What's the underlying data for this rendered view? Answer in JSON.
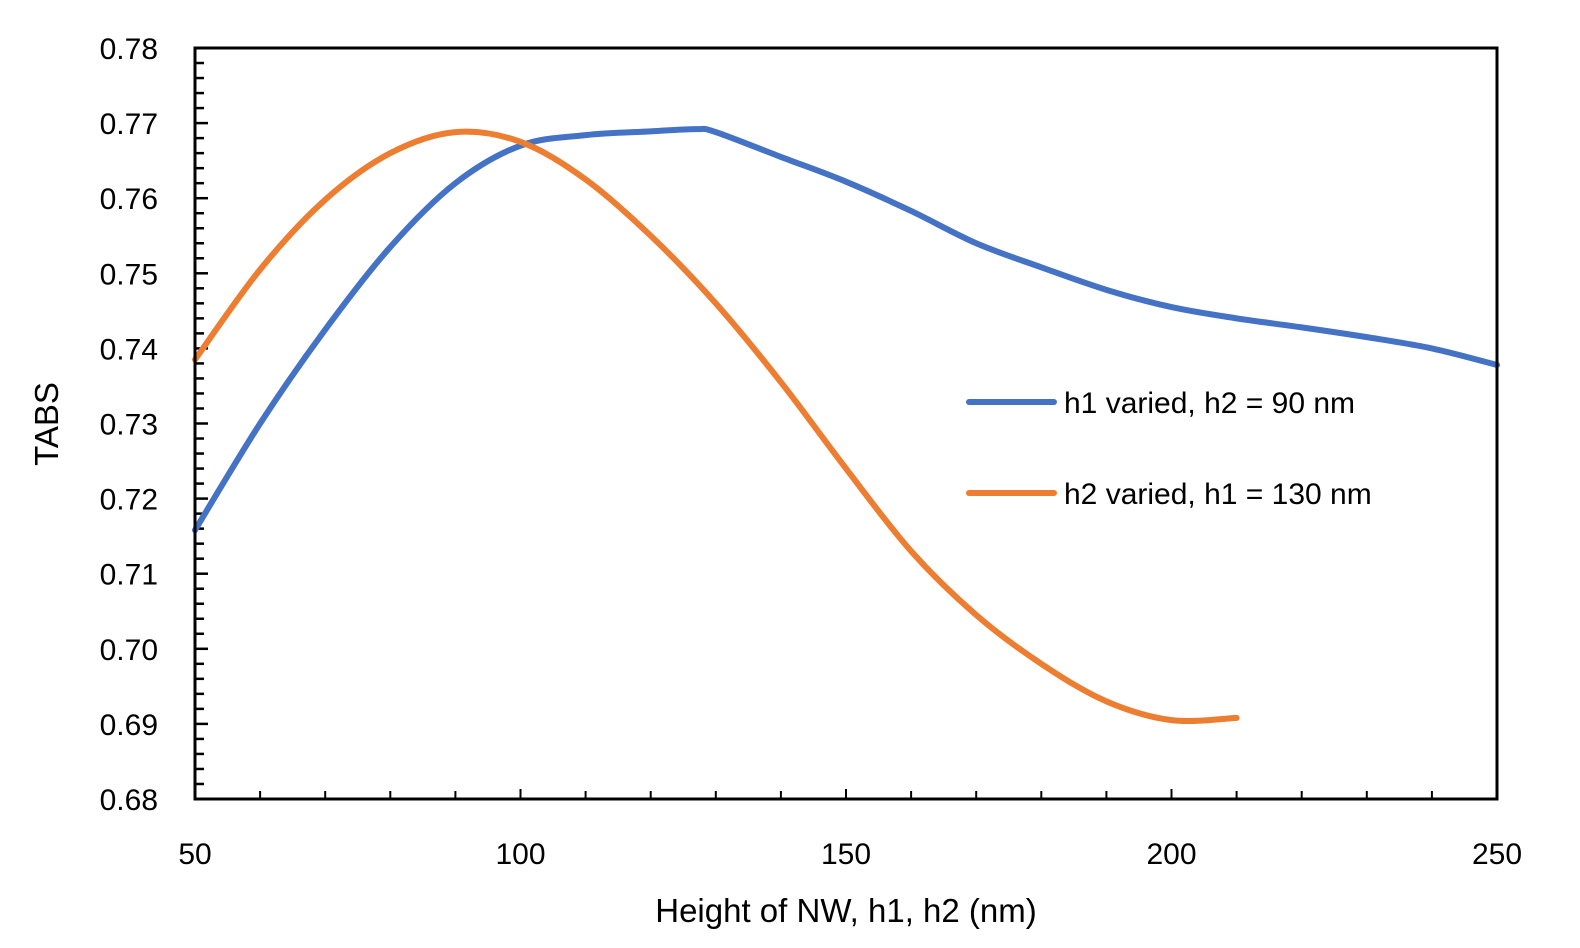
{
  "chart_data": {
    "type": "line",
    "title": "",
    "xlabel": "Height of NW, h1, h2 (nm)",
    "ylabel": "TABS",
    "xlim": [
      50,
      250
    ],
    "ylim": [
      0.68,
      0.78
    ],
    "x_ticks": [
      50,
      100,
      150,
      200,
      250
    ],
    "x_tick_labels": [
      "50",
      "100",
      "150",
      "200",
      "250"
    ],
    "x_minor_step": 10,
    "y_ticks": [
      0.68,
      0.69,
      0.7,
      0.71,
      0.72,
      0.73,
      0.74,
      0.75,
      0.76,
      0.77,
      0.78
    ],
    "y_tick_labels": [
      "0.68",
      "0.69",
      "0.70",
      "0.71",
      "0.72",
      "0.73",
      "0.74",
      "0.75",
      "0.76",
      "0.77",
      "0.78"
    ],
    "y_minor_step": 0.002,
    "grid": false,
    "legend_position": "right",
    "series": [
      {
        "name": "h1 varied, h2 = 90 nm",
        "color": "#4472C4",
        "x": [
          50,
          60,
          70,
          80,
          90,
          100,
          110,
          120,
          127,
          130,
          140,
          150,
          160,
          170,
          180,
          190,
          200,
          210,
          220,
          230,
          240,
          250
        ],
        "y": [
          0.7158,
          0.73,
          0.7425,
          0.7535,
          0.762,
          0.767,
          0.7684,
          0.7689,
          0.7692,
          0.7688,
          0.7655,
          0.7622,
          0.7583,
          0.754,
          0.7508,
          0.7478,
          0.7455,
          0.744,
          0.7428,
          0.7415,
          0.74,
          0.7378
        ]
      },
      {
        "name": "h2 varied, h1 = 130 nm",
        "color": "#ED7D31",
        "x": [
          50,
          60,
          70,
          80,
          90,
          100,
          110,
          120,
          130,
          140,
          150,
          160,
          170,
          180,
          190,
          200,
          210
        ],
        "y": [
          0.7385,
          0.7505,
          0.7598,
          0.766,
          0.7688,
          0.7675,
          0.7625,
          0.755,
          0.746,
          0.7355,
          0.724,
          0.713,
          0.7045,
          0.698,
          0.693,
          0.6905,
          0.6908
        ]
      }
    ]
  }
}
